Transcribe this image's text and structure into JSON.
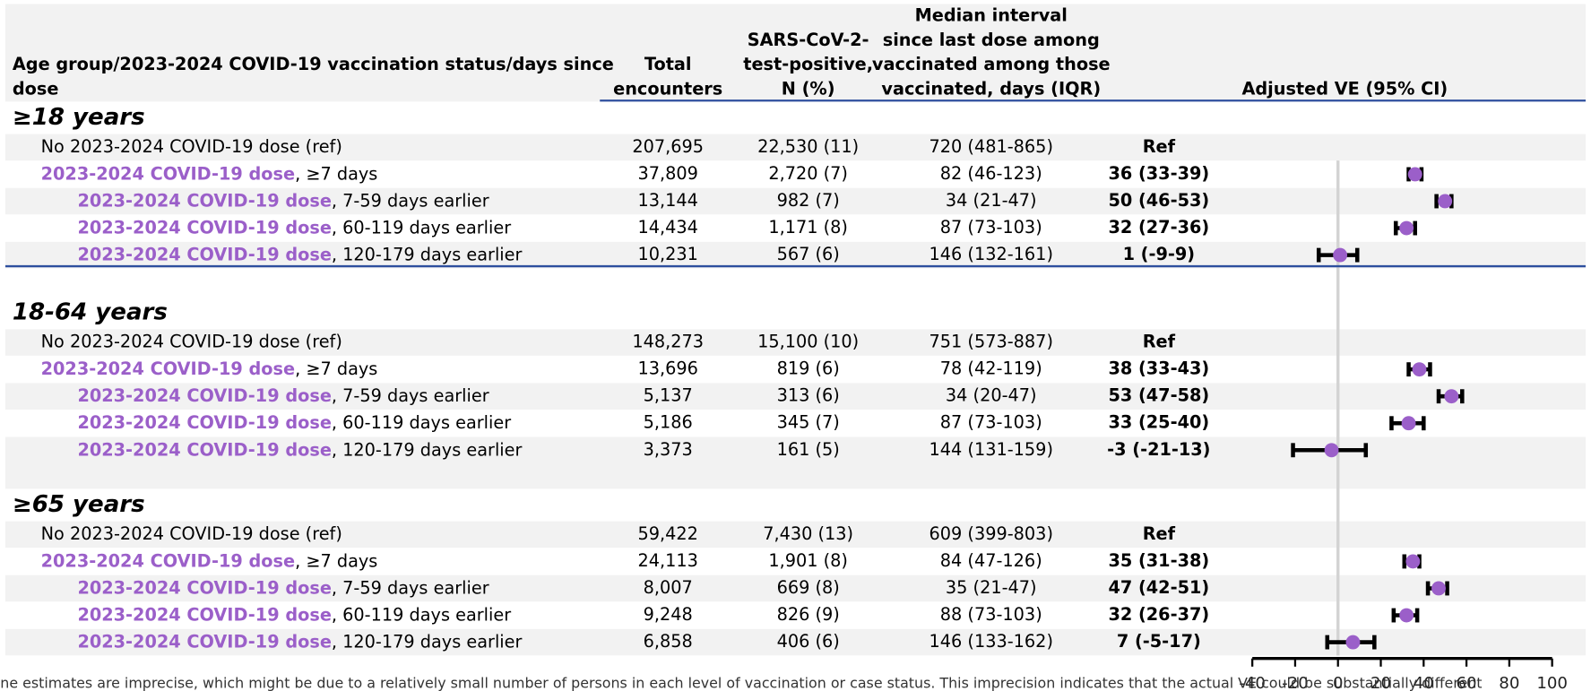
{
  "header": {
    "columns": [
      [
        "Age group/2023-2024 COVID-19 vaccination status/days since",
        "dose"
      ],
      [
        "Total",
        "encounters"
      ],
      [
        "SARS-CoV-2-",
        "test-positive,",
        "N (%)"
      ],
      [
        "Median interval",
        "since last dose among",
        "vaccinated among those",
        "vaccinated, days (IQR)"
      ],
      [
        "Adjusted VE (95% CI)"
      ]
    ]
  },
  "groups": [
    {
      "title": "≥18 years",
      "rows": [
        {
          "label": "No 2023-2024 COVID-19 dose (ref)",
          "total": "207,695",
          "positive": "22,530 (11)",
          "median": "720 (481-865)",
          "ve_label": "Ref"
        },
        {
          "dose": "2023-2024 COVID-19 dose",
          "suffix": ", ≥7 days",
          "total": "37,809",
          "positive": "2,720 (7)",
          "median": "82 (46-123)",
          "ve": 36,
          "ci": [
            33,
            39
          ],
          "ve_label": "36 (33-39)"
        },
        {
          "dose": "2023-2024 COVID-19 dose",
          "suffix": ", 7-59 days earlier",
          "total": "13,144",
          "positive": "982 (7)",
          "median": "34 (21-47)",
          "ve": 50,
          "ci": [
            46,
            53
          ],
          "ve_label": "50 (46-53)"
        },
        {
          "dose": "2023-2024 COVID-19 dose",
          "suffix": ", 60-119 days earlier",
          "total": "14,434",
          "positive": "1,171 (8)",
          "median": "87 (73-103)",
          "ve": 32,
          "ci": [
            27,
            36
          ],
          "ve_label": "32 (27-36)"
        },
        {
          "dose": "2023-2024 COVID-19 dose",
          "suffix": ", 120-179 days earlier",
          "total": "10,231",
          "positive": "567 (6)",
          "median": "146 (132-161)",
          "ve": 1,
          "ci": [
            -9,
            9
          ],
          "ve_label": "1 (-9-9)"
        }
      ]
    },
    {
      "title": "18-64 years",
      "rows": [
        {
          "label": "No 2023-2024 COVID-19 dose (ref)",
          "total": "148,273",
          "positive": "15,100 (10)",
          "median": "751 (573-887)",
          "ve_label": "Ref"
        },
        {
          "dose": "2023-2024 COVID-19 dose",
          "suffix": ", ≥7 days",
          "total": "13,696",
          "positive": "819 (6)",
          "median": "78 (42-119)",
          "ve": 38,
          "ci": [
            33,
            43
          ],
          "ve_label": "38 (33-43)"
        },
        {
          "dose": "2023-2024 COVID-19 dose",
          "suffix": ", 7-59 days earlier",
          "total": "5,137",
          "positive": "313 (6)",
          "median": "34 (20-47)",
          "ve": 53,
          "ci": [
            47,
            58
          ],
          "ve_label": "53 (47-58)"
        },
        {
          "dose": "2023-2024 COVID-19 dose",
          "suffix": ", 60-119 days earlier",
          "total": "5,186",
          "positive": "345 (7)",
          "median": "87 (73-103)",
          "ve": 33,
          "ci": [
            25,
            40
          ],
          "ve_label": "33 (25-40)"
        },
        {
          "dose": "2023-2024 COVID-19 dose",
          "suffix": ", 120-179 days earlier",
          "total": "3,373",
          "positive": "161 (5)",
          "median": "144 (131-159)",
          "ve": -3,
          "ci": [
            -21,
            13
          ],
          "ve_label": "-3 (-21-13)"
        }
      ]
    },
    {
      "title": "≥65 years",
      "rows": [
        {
          "label": "No 2023-2024 COVID-19 dose (ref)",
          "total": "59,422",
          "positive": "7,430 (13)",
          "median": "609 (399-803)",
          "ve_label": "Ref"
        },
        {
          "dose": "2023-2024 COVID-19 dose",
          "suffix": ", ≥7 days",
          "total": "24,113",
          "positive": "1,901 (8)",
          "median": "84 (47-126)",
          "ve": 35,
          "ci": [
            31,
            38
          ],
          "ve_label": "35 (31-38)"
        },
        {
          "dose": "2023-2024 COVID-19 dose",
          "suffix": ", 7-59 days earlier",
          "total": "8,007",
          "positive": "669 (8)",
          "median": "35 (21-47)",
          "ve": 47,
          "ci": [
            42,
            51
          ],
          "ve_label": "47 (42-51)"
        },
        {
          "dose": "2023-2024 COVID-19 dose",
          "suffix": ", 60-119 days earlier",
          "total": "9,248",
          "positive": "826 (9)",
          "median": "88 (73-103)",
          "ve": 32,
          "ci": [
            26,
            37
          ],
          "ve_label": "32 (26-37)"
        },
        {
          "dose": "2023-2024 COVID-19 dose",
          "suffix": ", 120-179 days earlier",
          "total": "6,858",
          "positive": "406 (6)",
          "median": "146 (133-162)",
          "ve": 7,
          "ci": [
            -5,
            17
          ],
          "ve_label": "7 (-5-17)"
        }
      ]
    }
  ],
  "forest": {
    "xlim": [
      -40,
      100
    ],
    "xticks": [
      -40,
      -20,
      0,
      20,
      40,
      60,
      80,
      100
    ],
    "marker_color": "#9b5fc9"
  },
  "footnote": "ne estimates are imprecise, which might be due to a relatively small number of persons in each level of vaccination or case status. This imprecision indicates that the actual VE could be substantially different"
}
